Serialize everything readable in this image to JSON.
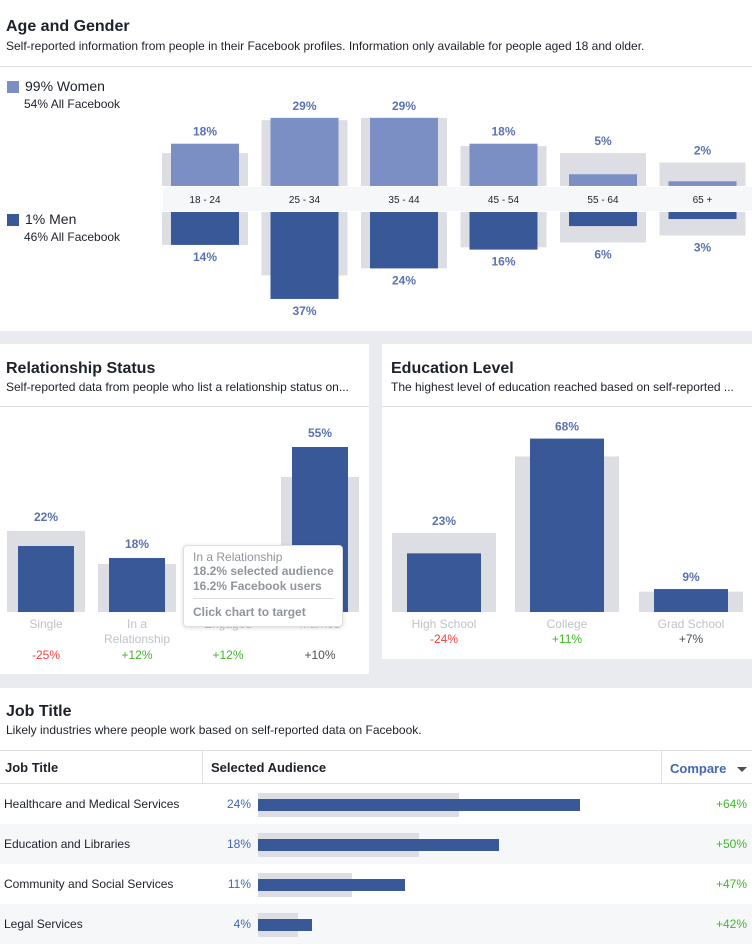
{
  "age_gender": {
    "title": "Age and Gender",
    "subtitle": "Self-reported information from people in their Facebook profiles. Information only available for people aged 18 and older.",
    "women_label": "99% Women",
    "women_sub": "54% All Facebook",
    "men_label": "1% Men",
    "men_sub": "46% All Facebook",
    "colors": {
      "women": "#7b8fc4",
      "men": "#385898",
      "baseline": "#dcdee3"
    }
  },
  "chart_data": [
    {
      "type": "bar",
      "title": "Age and Gender",
      "categories": [
        "18 - 24",
        "25 - 34",
        "35 - 44",
        "45 - 54",
        "55 - 64",
        "65 +"
      ],
      "series": [
        {
          "name": "99% Women",
          "values": [
            18,
            29,
            29,
            18,
            5,
            2
          ],
          "labels": [
            "18%",
            "29%",
            "29%",
            "18%",
            "5%",
            "2%"
          ],
          "baseline": [
            14,
            28,
            29,
            17,
            14,
            10
          ]
        },
        {
          "name": "1% Men",
          "values": [
            14,
            37,
            24,
            16,
            6,
            3
          ],
          "labels": [
            "14%",
            "37%",
            "24%",
            "16%",
            "6%",
            "3%"
          ],
          "baseline": [
            14,
            27,
            24,
            15,
            13,
            10
          ]
        }
      ]
    },
    {
      "type": "bar",
      "title": "Relationship Status",
      "categories": [
        "Single",
        "In a Relationship",
        "Engaged",
        "Married"
      ],
      "category_lines": [
        [
          "Single"
        ],
        [
          "In a",
          "Relationship"
        ],
        [
          "Engaged"
        ],
        [
          "Married"
        ]
      ],
      "values": [
        22,
        18,
        null,
        55
      ],
      "labels": [
        "22%",
        "18%",
        "",
        "55%"
      ],
      "baseline": [
        27,
        16,
        null,
        45
      ],
      "compare": [
        "-25%",
        "+12%",
        "+12%",
        "+10%"
      ]
    },
    {
      "type": "bar",
      "title": "Education Level",
      "categories": [
        "High School",
        "College",
        "Grad School"
      ],
      "values": [
        23,
        68,
        9
      ],
      "labels": [
        "23%",
        "68%",
        "9%"
      ],
      "baseline": [
        31,
        61,
        8
      ],
      "compare": [
        "-24%",
        "+11%",
        "+7%"
      ]
    },
    {
      "type": "bar",
      "title": "Job Title",
      "categories": [
        "Healthcare and Medical Services",
        "Education and Libraries",
        "Community and Social Services",
        "Legal Services"
      ],
      "values": [
        24,
        18,
        11,
        4
      ],
      "baseline": [
        15,
        12,
        7,
        3
      ],
      "compare": [
        "+64%",
        "+50%",
        "+47%",
        "+42%"
      ]
    }
  ],
  "relationship": {
    "title": "Relationship Status",
    "subtitle": "Self-reported data from people who list a relationship status on..."
  },
  "education": {
    "title": "Education Level",
    "subtitle": "The highest level of education reached based on self-reported ..."
  },
  "tooltip": {
    "title": "In a Relationship",
    "selected": "18.2% selected audience",
    "facebook": "16.2% Facebook users",
    "action": "Click chart to target"
  },
  "job_title": {
    "title": "Job Title",
    "subtitle": "Likely industries where people work based on self-reported data on Facebook.",
    "col_title": "Job Title",
    "col_audience": "Selected Audience",
    "col_compare": "Compare",
    "rows": [
      {
        "name": "Healthcare and Medical Services",
        "pct": "24%",
        "compare": "+64%"
      },
      {
        "name": "Education and Libraries",
        "pct": "18%",
        "compare": "+50%"
      },
      {
        "name": "Community and Social Services",
        "pct": "11%",
        "compare": "+47%"
      },
      {
        "name": "Legal Services",
        "pct": "4%",
        "compare": "+42%"
      }
    ]
  }
}
